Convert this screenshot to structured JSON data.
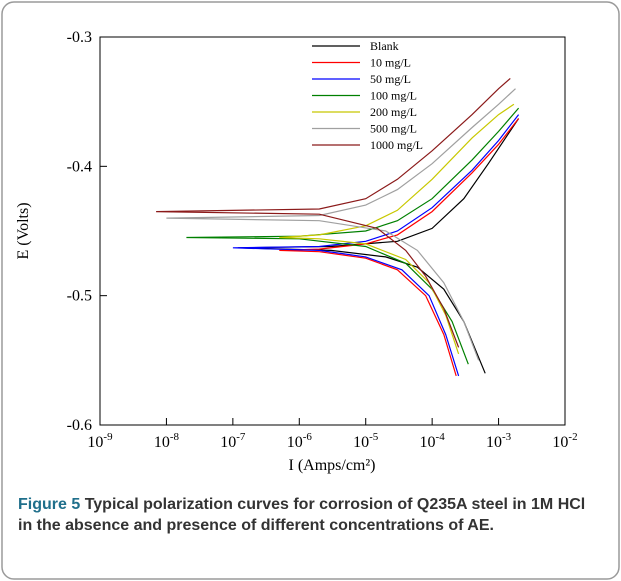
{
  "chart_data": {
    "type": "line",
    "xlabel": "I (Amps/cm²)",
    "ylabel": "E (Volts)",
    "caption": {
      "label": "Figure 5",
      "text": "Typical polarization curves for corrosion of Q235A steel in 1M HCl in the absence and presence of different concentrations of AE."
    },
    "xscale": "log",
    "xlim": [
      1e-09,
      0.01
    ],
    "ylim": [
      -0.6,
      -0.3
    ],
    "xticks": [
      {
        "value": 1e-09,
        "label": "10-9"
      },
      {
        "value": 1e-08,
        "label": "10-8"
      },
      {
        "value": 1e-07,
        "label": "10-7"
      },
      {
        "value": 1e-06,
        "label": "10-6"
      },
      {
        "value": 1e-05,
        "label": "10-5"
      },
      {
        "value": 0.0001,
        "label": "10-4"
      },
      {
        "value": 0.001,
        "label": "10-3"
      },
      {
        "value": 0.01,
        "label": "10-2"
      }
    ],
    "yticks": [
      -0.6,
      -0.5,
      -0.4,
      -0.3
    ],
    "legend": "upper center",
    "series": [
      {
        "name": "Blank",
        "color": "#000000",
        "x": [
          0.00063,
          0.0003,
          0.00015,
          6e-05,
          2e-05,
          3e-06,
          1.2e-07,
          3e-06,
          3e-05,
          0.0001,
          0.0003,
          0.0007,
          0.002
        ],
        "values": [
          -0.56,
          -0.52,
          -0.495,
          -0.478,
          -0.47,
          -0.465,
          -0.463,
          -0.462,
          -0.458,
          -0.448,
          -0.425,
          -0.398,
          -0.363
        ]
      },
      {
        "name": "10 mg/L",
        "color": "#ff0000",
        "x": [
          0.00023,
          0.00015,
          8e-05,
          3e-05,
          1e-05,
          2e-06,
          5e-07,
          2e-06,
          1e-05,
          3e-05,
          0.0001,
          0.0004,
          0.001,
          0.002
        ],
        "values": [
          -0.562,
          -0.53,
          -0.5,
          -0.48,
          -0.471,
          -0.466,
          -0.465,
          -0.464,
          -0.46,
          -0.453,
          -0.435,
          -0.405,
          -0.383,
          -0.363
        ]
      },
      {
        "name": "50 mg/L",
        "color": "#0000ff",
        "x": [
          0.00025,
          0.00016,
          9e-05,
          3.5e-05,
          1e-05,
          2e-06,
          1e-07,
          2e-06,
          1e-05,
          3e-05,
          0.0001,
          0.0004,
          0.001,
          0.002
        ],
        "values": [
          -0.562,
          -0.53,
          -0.5,
          -0.48,
          -0.47,
          -0.465,
          -0.463,
          -0.462,
          -0.458,
          -0.45,
          -0.432,
          -0.403,
          -0.38,
          -0.36
        ]
      },
      {
        "name": "100 mg/L",
        "color": "#008000",
        "x": [
          0.00035,
          0.0002,
          0.0001,
          4e-05,
          1e-05,
          1e-06,
          2e-08,
          1e-06,
          1e-05,
          3e-05,
          0.0001,
          0.0004,
          0.001,
          0.002
        ],
        "values": [
          -0.553,
          -0.52,
          -0.495,
          -0.475,
          -0.462,
          -0.456,
          -0.455,
          -0.454,
          -0.45,
          -0.442,
          -0.425,
          -0.395,
          -0.373,
          -0.355
        ]
      },
      {
        "name": "200 mg/L",
        "color": "#c8c800",
        "x": [
          0.00025,
          0.00016,
          9e-05,
          4e-05,
          1e-05,
          2e-06,
          5e-07,
          2e-06,
          1e-05,
          3e-05,
          0.0001,
          0.0004,
          0.001,
          0.0017
        ],
        "values": [
          -0.545,
          -0.515,
          -0.49,
          -0.472,
          -0.46,
          -0.456,
          -0.455,
          -0.453,
          -0.446,
          -0.434,
          -0.41,
          -0.378,
          -0.36,
          -0.352
        ]
      },
      {
        "name": "500 mg/L",
        "color": "#a0a0a0",
        "x": [
          0.0005,
          0.0003,
          0.00015,
          6e-05,
          2e-05,
          2e-06,
          1e-08,
          2e-06,
          1e-05,
          3e-05,
          0.0001,
          0.0004,
          0.001,
          0.0018
        ],
        "values": [
          -0.55,
          -0.52,
          -0.49,
          -0.465,
          -0.45,
          -0.442,
          -0.44,
          -0.438,
          -0.43,
          -0.418,
          -0.398,
          -0.37,
          -0.352,
          -0.34
        ]
      },
      {
        "name": "1000 mg/L",
        "color": "#8b1a1a",
        "x": [
          0.00025,
          0.00015,
          8e-05,
          4e-05,
          1.5e-05,
          2e-06,
          7e-09,
          2e-06,
          1e-05,
          3e-05,
          0.0001,
          0.0004,
          0.001,
          0.0015
        ],
        "values": [
          -0.54,
          -0.51,
          -0.485,
          -0.465,
          -0.448,
          -0.437,
          -0.435,
          -0.433,
          -0.425,
          -0.41,
          -0.388,
          -0.36,
          -0.34,
          -0.332
        ]
      }
    ]
  }
}
